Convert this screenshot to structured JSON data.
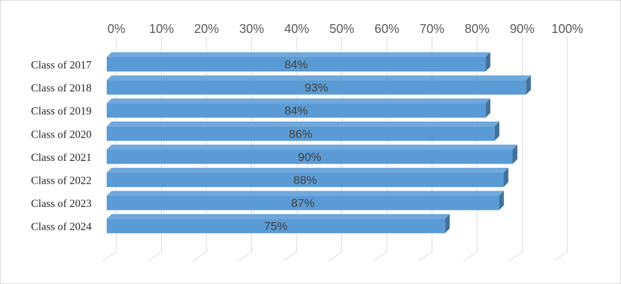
{
  "chart_data": {
    "type": "bar",
    "orientation": "horizontal",
    "three_d": true,
    "categories": [
      "Class of 2017",
      "Class of 2018",
      "Class of 2019",
      "Class of 2020",
      "Class of 2021",
      "Class of 2022",
      "Class of 2023",
      "Class of 2024"
    ],
    "values": [
      84,
      93,
      84,
      86,
      90,
      88,
      87,
      75
    ],
    "data_labels": [
      "84%",
      "93%",
      "84%",
      "86%",
      "90%",
      "88%",
      "87%",
      "75%"
    ],
    "xlim": [
      0,
      100
    ],
    "x_ticks": [
      0,
      10,
      20,
      30,
      40,
      50,
      60,
      70,
      80,
      90,
      100
    ],
    "x_tick_labels": [
      "0%",
      "10%",
      "20%",
      "30%",
      "40%",
      "50%",
      "60%",
      "70%",
      "80%",
      "90%",
      "100%"
    ],
    "x_axis_position": "top",
    "grid": true,
    "legend": "none",
    "colors": {
      "bar_front": "#5b9bd5",
      "bar_top": "#6fa8dc",
      "bar_side": "#41719c",
      "gridline": "#d9d9d9",
      "frame": "#d9d9d9"
    }
  }
}
